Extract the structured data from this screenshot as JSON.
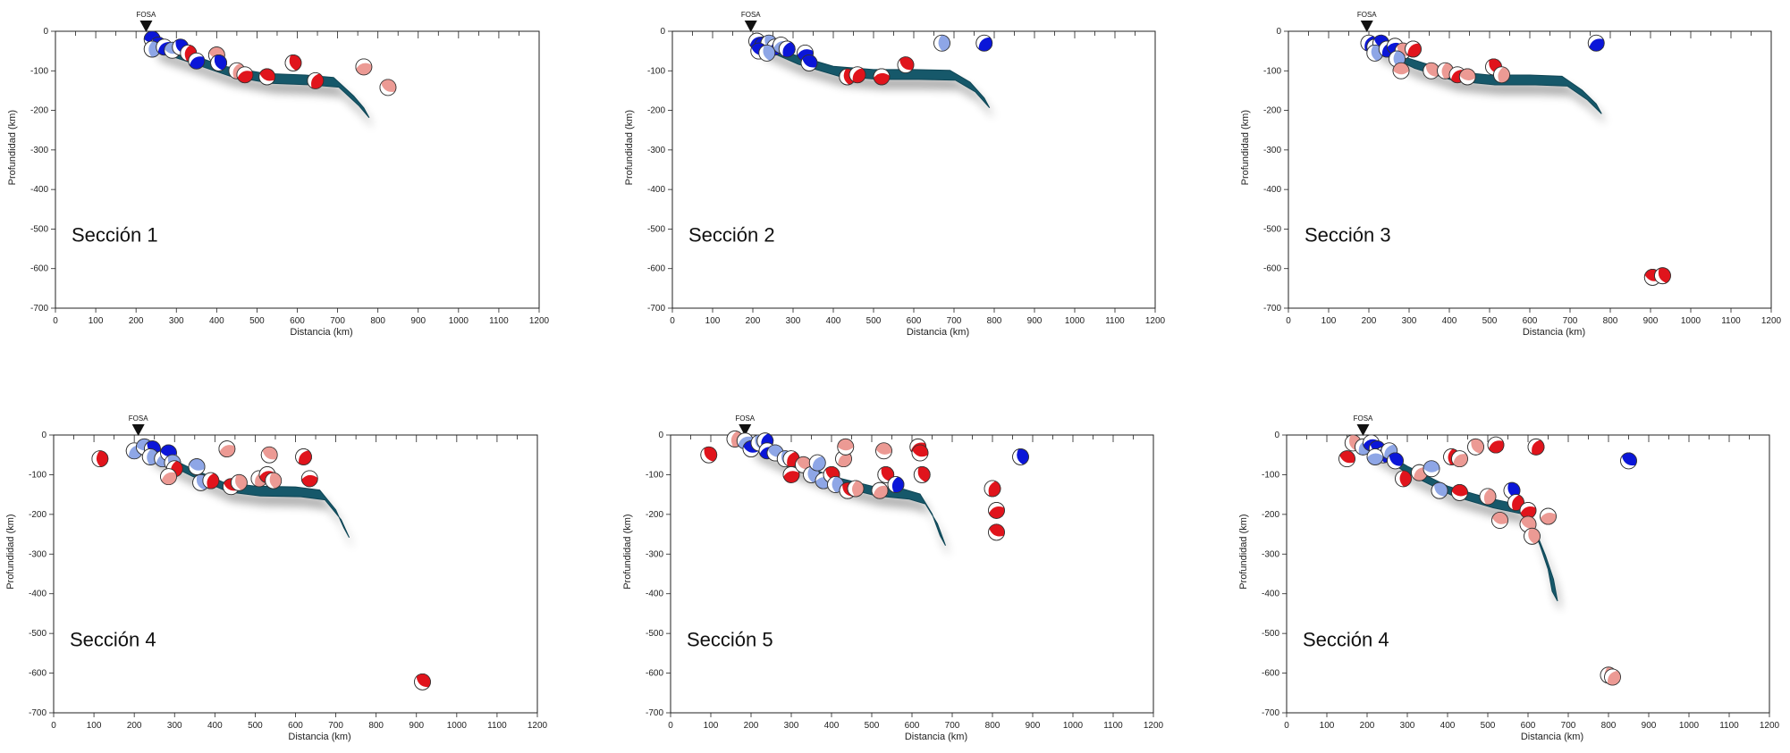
{
  "chart_data": [
    {
      "type": "scatter",
      "title": "Sección 1",
      "xlabel": "Distancia (km)",
      "ylabel": "Profundidad (km)",
      "xlim": [
        0,
        1200
      ],
      "ylim": [
        -700,
        0
      ],
      "xticks": [
        "0",
        "100",
        "200",
        "300",
        "400",
        "500",
        "600",
        "700",
        "800",
        "900",
        "1000",
        "1100",
        "1200"
      ],
      "yticks": [
        "0",
        "-100",
        "-200",
        "-300",
        "-400",
        "-500",
        "-600",
        "-700"
      ],
      "trench": {
        "label": "FOSA",
        "x": 225
      },
      "slab": [
        [
          240,
          -38
        ],
        [
          320,
          -65
        ],
        [
          420,
          -100
        ],
        [
          520,
          -118
        ],
        [
          620,
          -122
        ],
        [
          690,
          -128
        ],
        [
          740,
          -175
        ],
        [
          765,
          -205
        ]
      ],
      "events": [
        {
          "x": 240,
          "y": -20,
          "type": "thrust"
        },
        {
          "x": 255,
          "y": -35,
          "type": "thrust"
        },
        {
          "x": 240,
          "y": -45,
          "type": "thrust_light"
        },
        {
          "x": 270,
          "y": -40,
          "type": "thrust"
        },
        {
          "x": 290,
          "y": -48,
          "type": "thrust_light"
        },
        {
          "x": 310,
          "y": -40,
          "type": "thrust"
        },
        {
          "x": 330,
          "y": -55,
          "type": "normal"
        },
        {
          "x": 350,
          "y": -75,
          "type": "thrust"
        },
        {
          "x": 400,
          "y": -60,
          "type": "normal_light"
        },
        {
          "x": 405,
          "y": -80,
          "type": "thrust"
        },
        {
          "x": 450,
          "y": -100,
          "type": "normal_light"
        },
        {
          "x": 470,
          "y": -110,
          "type": "normal"
        },
        {
          "x": 525,
          "y": -115,
          "type": "normal"
        },
        {
          "x": 590,
          "y": -80,
          "type": "normal"
        },
        {
          "x": 645,
          "y": -125,
          "type": "normal"
        },
        {
          "x": 765,
          "y": -90,
          "type": "normal_light"
        },
        {
          "x": 825,
          "y": -142,
          "type": "normal_light"
        }
      ]
    },
    {
      "type": "scatter",
      "title": "Sección 2",
      "xlabel": "Distancia (km)",
      "ylabel": "Profundidad (km)",
      "xlim": [
        0,
        1200
      ],
      "ylim": [
        -700,
        0
      ],
      "xticks": [
        "0",
        "100",
        "200",
        "300",
        "400",
        "500",
        "600",
        "700",
        "800",
        "900",
        "1000",
        "1100",
        "1200"
      ],
      "yticks": [
        "0",
        "-100",
        "-200",
        "-300",
        "-400",
        "-500",
        "-600",
        "-700"
      ],
      "trench": {
        "label": "FOSA",
        "x": 195
      },
      "slab": [
        [
          210,
          -30
        ],
        [
          300,
          -70
        ],
        [
          400,
          -100
        ],
        [
          500,
          -108
        ],
        [
          600,
          -108
        ],
        [
          690,
          -110
        ],
        [
          740,
          -140
        ],
        [
          775,
          -180
        ]
      ],
      "events": [
        {
          "x": 210,
          "y": -25,
          "type": "thrust"
        },
        {
          "x": 225,
          "y": -35,
          "type": "thrust"
        },
        {
          "x": 240,
          "y": -30,
          "type": "thrust_light"
        },
        {
          "x": 255,
          "y": -40,
          "type": "thrust"
        },
        {
          "x": 270,
          "y": -35,
          "type": "thrust_light"
        },
        {
          "x": 215,
          "y": -50,
          "type": "thrust"
        },
        {
          "x": 235,
          "y": -55,
          "type": "thrust_light"
        },
        {
          "x": 285,
          "y": -45,
          "type": "thrust"
        },
        {
          "x": 330,
          "y": -55,
          "type": "thrust"
        },
        {
          "x": 340,
          "y": -80,
          "type": "thrust"
        },
        {
          "x": 435,
          "y": -115,
          "type": "normal"
        },
        {
          "x": 460,
          "y": -110,
          "type": "normal"
        },
        {
          "x": 520,
          "y": -115,
          "type": "normal"
        },
        {
          "x": 580,
          "y": -85,
          "type": "normal"
        },
        {
          "x": 670,
          "y": -30,
          "type": "thrust_light"
        },
        {
          "x": 775,
          "y": -30,
          "type": "thrust"
        }
      ]
    },
    {
      "type": "scatter",
      "title": "Sección 3",
      "xlabel": "Distancia (km)",
      "ylabel": "Profundidad (km)",
      "xlim": [
        0,
        1200
      ],
      "ylim": [
        -700,
        0
      ],
      "xticks": [
        "0",
        "100",
        "200",
        "300",
        "400",
        "500",
        "600",
        "700",
        "800",
        "900",
        "1000",
        "1100",
        "1200"
      ],
      "yticks": [
        "0",
        "-100",
        "-200",
        "-300",
        "-400",
        "-500",
        "-600",
        "-700"
      ],
      "trench": {
        "label": "FOSA",
        "x": 195
      },
      "slab": [
        [
          210,
          -35
        ],
        [
          300,
          -80
        ],
        [
          400,
          -112
        ],
        [
          500,
          -122
        ],
        [
          600,
          -122
        ],
        [
          680,
          -125
        ],
        [
          730,
          -160
        ],
        [
          765,
          -195
        ]
      ],
      "events": [
        {
          "x": 200,
          "y": -30,
          "type": "thrust"
        },
        {
          "x": 215,
          "y": -40,
          "type": "thrust_light"
        },
        {
          "x": 230,
          "y": -30,
          "type": "thrust"
        },
        {
          "x": 215,
          "y": -55,
          "type": "thrust_light"
        },
        {
          "x": 245,
          "y": -45,
          "type": "thrust"
        },
        {
          "x": 265,
          "y": -38,
          "type": "thrust"
        },
        {
          "x": 285,
          "y": -50,
          "type": "normal_light"
        },
        {
          "x": 270,
          "y": -70,
          "type": "thrust_light"
        },
        {
          "x": 310,
          "y": -45,
          "type": "normal"
        },
        {
          "x": 280,
          "y": -100,
          "type": "normal_light"
        },
        {
          "x": 355,
          "y": -100,
          "type": "normal_light"
        },
        {
          "x": 390,
          "y": -100,
          "type": "normal_light"
        },
        {
          "x": 420,
          "y": -110,
          "type": "normal"
        },
        {
          "x": 445,
          "y": -115,
          "type": "normal_light"
        },
        {
          "x": 510,
          "y": -90,
          "type": "normal"
        },
        {
          "x": 530,
          "y": -110,
          "type": "normal_light"
        },
        {
          "x": 765,
          "y": -30,
          "type": "thrust"
        },
        {
          "x": 905,
          "y": -622,
          "type": "normal"
        },
        {
          "x": 930,
          "y": -618,
          "type": "normal"
        }
      ]
    },
    {
      "type": "scatter",
      "title": "Sección 4",
      "xlabel": "Distancia (km)",
      "ylabel": "Profundidad (km)",
      "xlim": [
        0,
        1200
      ],
      "ylim": [
        -700,
        0
      ],
      "xticks": [
        "0",
        "100",
        "200",
        "300",
        "400",
        "500",
        "600",
        "700",
        "800",
        "900",
        "1000",
        "1100",
        "1200"
      ],
      "yticks": [
        "0",
        "-100",
        "-200",
        "-300",
        "-400",
        "-500",
        "-600",
        "-700"
      ],
      "trench": {
        "label": "FOSA",
        "x": 210
      },
      "slab": [
        [
          230,
          -40
        ],
        [
          330,
          -90
        ],
        [
          420,
          -130
        ],
        [
          500,
          -140
        ],
        [
          600,
          -142
        ],
        [
          660,
          -150
        ],
        [
          700,
          -200
        ],
        [
          720,
          -245
        ]
      ],
      "events": [
        {
          "x": 115,
          "y": -60,
          "type": "normal"
        },
        {
          "x": 200,
          "y": -40,
          "type": "thrust_light"
        },
        {
          "x": 225,
          "y": -30,
          "type": "thrust_light"
        },
        {
          "x": 245,
          "y": -35,
          "type": "thrust"
        },
        {
          "x": 240,
          "y": -55,
          "type": "thrust_light"
        },
        {
          "x": 270,
          "y": -60,
          "type": "thrust_light"
        },
        {
          "x": 285,
          "y": -45,
          "type": "thrust"
        },
        {
          "x": 295,
          "y": -70,
          "type": "thrust_light"
        },
        {
          "x": 300,
          "y": -85,
          "type": "normal"
        },
        {
          "x": 285,
          "y": -105,
          "type": "normal_light"
        },
        {
          "x": 355,
          "y": -80,
          "type": "thrust_light"
        },
        {
          "x": 365,
          "y": -120,
          "type": "thrust_light"
        },
        {
          "x": 390,
          "y": -115,
          "type": "normal"
        },
        {
          "x": 430,
          "y": -35,
          "type": "normal_light"
        },
        {
          "x": 440,
          "y": -130,
          "type": "normal"
        },
        {
          "x": 460,
          "y": -120,
          "type": "normal_light"
        },
        {
          "x": 510,
          "y": -110,
          "type": "normal_light"
        },
        {
          "x": 530,
          "y": -100,
          "type": "normal"
        },
        {
          "x": 535,
          "y": -50,
          "type": "normal_light"
        },
        {
          "x": 545,
          "y": -115,
          "type": "normal_light"
        },
        {
          "x": 620,
          "y": -55,
          "type": "normal"
        },
        {
          "x": 635,
          "y": -110,
          "type": "normal"
        },
        {
          "x": 915,
          "y": -622,
          "type": "normal"
        }
      ]
    },
    {
      "type": "scatter",
      "title": "Sección 5",
      "xlabel": "Distancia (km)",
      "ylabel": "Profundidad (km)",
      "xlim": [
        0,
        1200
      ],
      "ylim": [
        -700,
        0
      ],
      "xticks": [
        "0",
        "100",
        "200",
        "300",
        "400",
        "500",
        "600",
        "700",
        "800",
        "900",
        "1000",
        "1100",
        "1200"
      ],
      "yticks": [
        "0",
        "-100",
        "-200",
        "-300",
        "-400",
        "-500",
        "-600",
        "-700"
      ],
      "trench": {
        "label": "FOSA",
        "x": 185
      },
      "slab": [
        [
          195,
          -25
        ],
        [
          300,
          -75
        ],
        [
          400,
          -115
        ],
        [
          500,
          -140
        ],
        [
          580,
          -148
        ],
        [
          620,
          -160
        ],
        [
          650,
          -210
        ],
        [
          670,
          -265
        ]
      ],
      "events": [
        {
          "x": 95,
          "y": -50,
          "type": "normal"
        },
        {
          "x": 160,
          "y": -10,
          "type": "normal_light"
        },
        {
          "x": 185,
          "y": -15,
          "type": "thrust_light"
        },
        {
          "x": 200,
          "y": -35,
          "type": "thrust"
        },
        {
          "x": 220,
          "y": -20,
          "type": "thrust_light"
        },
        {
          "x": 235,
          "y": -15,
          "type": "thrust"
        },
        {
          "x": 240,
          "y": -40,
          "type": "thrust"
        },
        {
          "x": 260,
          "y": -45,
          "type": "thrust_light"
        },
        {
          "x": 285,
          "y": -60,
          "type": "thrust_light"
        },
        {
          "x": 300,
          "y": -60,
          "type": "normal"
        },
        {
          "x": 300,
          "y": -100,
          "type": "normal"
        },
        {
          "x": 330,
          "y": -75,
          "type": "normal_light"
        },
        {
          "x": 350,
          "y": -100,
          "type": "thrust_light"
        },
        {
          "x": 365,
          "y": -70,
          "type": "thrust_light"
        },
        {
          "x": 380,
          "y": -115,
          "type": "thrust_light"
        },
        {
          "x": 400,
          "y": -100,
          "type": "normal"
        },
        {
          "x": 410,
          "y": -125,
          "type": "thrust_light"
        },
        {
          "x": 430,
          "y": -60,
          "type": "normal_light"
        },
        {
          "x": 435,
          "y": -30,
          "type": "normal_light"
        },
        {
          "x": 440,
          "y": -140,
          "type": "normal"
        },
        {
          "x": 460,
          "y": -135,
          "type": "normal_light"
        },
        {
          "x": 520,
          "y": -140,
          "type": "normal_light"
        },
        {
          "x": 530,
          "y": -40,
          "type": "normal_light"
        },
        {
          "x": 535,
          "y": -100,
          "type": "normal"
        },
        {
          "x": 560,
          "y": -125,
          "type": "thrust"
        },
        {
          "x": 615,
          "y": -30,
          "type": "normal"
        },
        {
          "x": 620,
          "y": -45,
          "type": "normal"
        },
        {
          "x": 625,
          "y": -100,
          "type": "normal"
        },
        {
          "x": 800,
          "y": -135,
          "type": "normal"
        },
        {
          "x": 810,
          "y": -190,
          "type": "normal"
        },
        {
          "x": 810,
          "y": -245,
          "type": "normal"
        },
        {
          "x": 870,
          "y": -55,
          "type": "thrust"
        }
      ]
    },
    {
      "type": "scatter",
      "title": "Sección 4",
      "xlabel": "Distancia (km)",
      "ylabel": "Profundidad (km)",
      "xlim": [
        0,
        1200
      ],
      "ylim": [
        -700,
        0
      ],
      "xticks": [
        "0",
        "100",
        "200",
        "300",
        "400",
        "500",
        "600",
        "700",
        "800",
        "900",
        "1000",
        "1100",
        "1200"
      ],
      "yticks": [
        "0",
        "-100",
        "-200",
        "-300",
        "-400",
        "-500",
        "-600",
        "-700"
      ],
      "trench": {
        "label": "FOSA",
        "x": 190
      },
      "slab": [
        [
          200,
          -30
        ],
        [
          300,
          -90
        ],
        [
          400,
          -140
        ],
        [
          500,
          -170
        ],
        [
          570,
          -185
        ],
        [
          600,
          -215
        ],
        [
          630,
          -290
        ],
        [
          650,
          -350
        ],
        [
          660,
          -405
        ]
      ],
      "events": [
        {
          "x": 150,
          "y": -60,
          "type": "normal"
        },
        {
          "x": 165,
          "y": -20,
          "type": "normal_light"
        },
        {
          "x": 190,
          "y": -30,
          "type": "thrust_light"
        },
        {
          "x": 210,
          "y": -20,
          "type": "thrust"
        },
        {
          "x": 225,
          "y": -35,
          "type": "thrust"
        },
        {
          "x": 240,
          "y": -50,
          "type": "thrust"
        },
        {
          "x": 255,
          "y": -40,
          "type": "thrust_light"
        },
        {
          "x": 220,
          "y": -55,
          "type": "thrust_light"
        },
        {
          "x": 270,
          "y": -65,
          "type": "thrust"
        },
        {
          "x": 290,
          "y": -110,
          "type": "normal"
        },
        {
          "x": 330,
          "y": -95,
          "type": "normal_light"
        },
        {
          "x": 360,
          "y": -85,
          "type": "thrust_light"
        },
        {
          "x": 380,
          "y": -140,
          "type": "thrust_light"
        },
        {
          "x": 410,
          "y": -55,
          "type": "normal"
        },
        {
          "x": 430,
          "y": -60,
          "type": "normal_light"
        },
        {
          "x": 430,
          "y": -145,
          "type": "normal"
        },
        {
          "x": 470,
          "y": -30,
          "type": "normal_light"
        },
        {
          "x": 500,
          "y": -155,
          "type": "normal_light"
        },
        {
          "x": 520,
          "y": -25,
          "type": "normal"
        },
        {
          "x": 530,
          "y": -215,
          "type": "normal_light"
        },
        {
          "x": 560,
          "y": -140,
          "type": "thrust"
        },
        {
          "x": 570,
          "y": -170,
          "type": "normal"
        },
        {
          "x": 600,
          "y": -190,
          "type": "normal"
        },
        {
          "x": 600,
          "y": -225,
          "type": "normal_light"
        },
        {
          "x": 610,
          "y": -255,
          "type": "normal_light"
        },
        {
          "x": 620,
          "y": -30,
          "type": "normal"
        },
        {
          "x": 650,
          "y": -205,
          "type": "normal_light"
        },
        {
          "x": 850,
          "y": -65,
          "type": "thrust"
        },
        {
          "x": 800,
          "y": -605,
          "type": "normal_light"
        },
        {
          "x": 810,
          "y": -610,
          "type": "normal_light"
        }
      ]
    }
  ]
}
